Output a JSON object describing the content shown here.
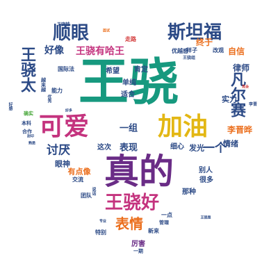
{
  "palette": {
    "teal": "#17997f",
    "navy": "#2c4a86",
    "purple": "#6a2c86",
    "orange": "#eb6e1c",
    "magenta": "#c4337e",
    "yellow": "#e3b714",
    "blue": "#2b7fc3",
    "green": "#4aa83c",
    "red": "#d33939",
    "gray": "#5a5a5a"
  },
  "words": [
    {
      "text": "王骁",
      "color": "teal",
      "weight": 100
    },
    {
      "text": "真的",
      "color": "purple",
      "weight": 60
    },
    {
      "text": "可爱",
      "color": "magenta",
      "weight": 40
    },
    {
      "text": "加油",
      "color": "yellow",
      "weight": 40
    },
    {
      "text": "王骁好",
      "color": "magenta",
      "weight": 32
    },
    {
      "text": "顺眼",
      "color": "navy",
      "weight": 30
    },
    {
      "text": "斯坦福",
      "color": "navy",
      "weight": 30
    },
    {
      "text": "王骁太",
      "color": "navy",
      "weight": 28
    },
    {
      "text": "凡尔赛",
      "color": "navy",
      "weight": 28
    },
    {
      "text": "表情",
      "color": "orange",
      "weight": 24
    },
    {
      "text": "讨厌",
      "color": "navy",
      "weight": 20
    },
    {
      "text": "一个",
      "color": "navy",
      "weight": 20
    },
    {
      "text": "王骁有哈王",
      "color": "magenta",
      "weight": 18
    },
    {
      "text": "好像",
      "color": "navy",
      "weight": 16
    },
    {
      "text": "一组",
      "color": "navy",
      "weight": 16
    },
    {
      "text": "表现",
      "color": "navy",
      "weight": 16
    },
    {
      "text": "李晋晔",
      "color": "orange",
      "weight": 14
    },
    {
      "text": "终于",
      "color": "orange",
      "weight": 14
    },
    {
      "text": "自信",
      "color": "orange",
      "weight": 14
    },
    {
      "text": "律师",
      "color": "navy",
      "weight": 14
    },
    {
      "text": "发光",
      "color": "navy",
      "weight": 12
    },
    {
      "text": "有点像",
      "color": "orange",
      "weight": 12
    },
    {
      "text": "眼神",
      "color": "navy",
      "weight": 12
    },
    {
      "text": "情绪",
      "color": "navy",
      "weight": 12
    },
    {
      "text": "实力",
      "color": "navy",
      "weight": 12
    },
    {
      "text": "希望",
      "color": "navy",
      "weight": 10
    },
    {
      "text": "肯定",
      "color": "navy",
      "weight": 10
    },
    {
      "text": "单纯",
      "color": "navy",
      "weight": 10
    },
    {
      "text": "适合",
      "color": "navy",
      "weight": 10
    },
    {
      "text": "细心",
      "color": "navy",
      "weight": 10
    },
    {
      "text": "这次",
      "color": "navy",
      "weight": 10
    },
    {
      "text": "很多",
      "color": "navy",
      "weight": 10
    },
    {
      "text": "别人",
      "color": "navy",
      "weight": 10
    },
    {
      "text": "那种",
      "color": "navy",
      "weight": 10
    },
    {
      "text": "厉害",
      "color": "purple",
      "weight": 10
    },
    {
      "text": "优越感",
      "color": "navy",
      "weight": 9
    },
    {
      "text": "样子",
      "color": "navy",
      "weight": 9
    },
    {
      "text": "改观",
      "color": "navy",
      "weight": 9
    },
    {
      "text": "走路",
      "color": "red",
      "weight": 8
    },
    {
      "text": "国际法",
      "color": "navy",
      "weight": 8
    },
    {
      "text": "能力",
      "color": "navy",
      "weight": 8
    },
    {
      "text": "交流",
      "color": "navy",
      "weight": 8
    },
    {
      "text": "团队",
      "color": "navy",
      "weight": 8
    },
    {
      "text": "一点",
      "color": "navy",
      "weight": 8
    },
    {
      "text": "新来",
      "color": "navy",
      "weight": 8
    },
    {
      "text": "特别",
      "color": "navy",
      "weight": 8
    },
    {
      "text": "管理",
      "color": "navy",
      "weight": 7
    },
    {
      "text": "一期",
      "color": "navy",
      "weight": 7
    },
    {
      "text": "合作",
      "color": "navy",
      "weight": 7
    },
    {
      "text": "本科",
      "color": "navy",
      "weight": 7
    },
    {
      "text": "确实",
      "color": "green",
      "weight": 7
    },
    {
      "text": "越来越",
      "color": "navy",
      "weight": 7
    },
    {
      "text": "王骁越",
      "color": "navy",
      "weight": 6
    },
    {
      "text": "好感",
      "color": "navy",
      "weight": 6
    },
    {
      "text": "优秀",
      "color": "navy",
      "weight": 6
    },
    {
      "text": "说话",
      "color": "navy",
      "weight": 6
    },
    {
      "text": "王骁组",
      "color": "navy",
      "weight": 6
    },
    {
      "text": "李晋",
      "color": "navy",
      "weight": 6
    },
    {
      "text": "面试",
      "color": "orange",
      "weight": 5
    },
    {
      "text": "王骁是",
      "color": "navy",
      "weight": 5
    },
    {
      "text": "耳朵",
      "color": "red",
      "weight": 5
    },
    {
      "text": "专业",
      "color": "navy",
      "weight": 5
    },
    {
      "text": "好多",
      "color": "navy",
      "weight": 5
    },
    {
      "text": "熟悉",
      "color": "navy",
      "weight": 5
    },
    {
      "text": "封印",
      "color": "navy",
      "weight": 5
    }
  ]
}
